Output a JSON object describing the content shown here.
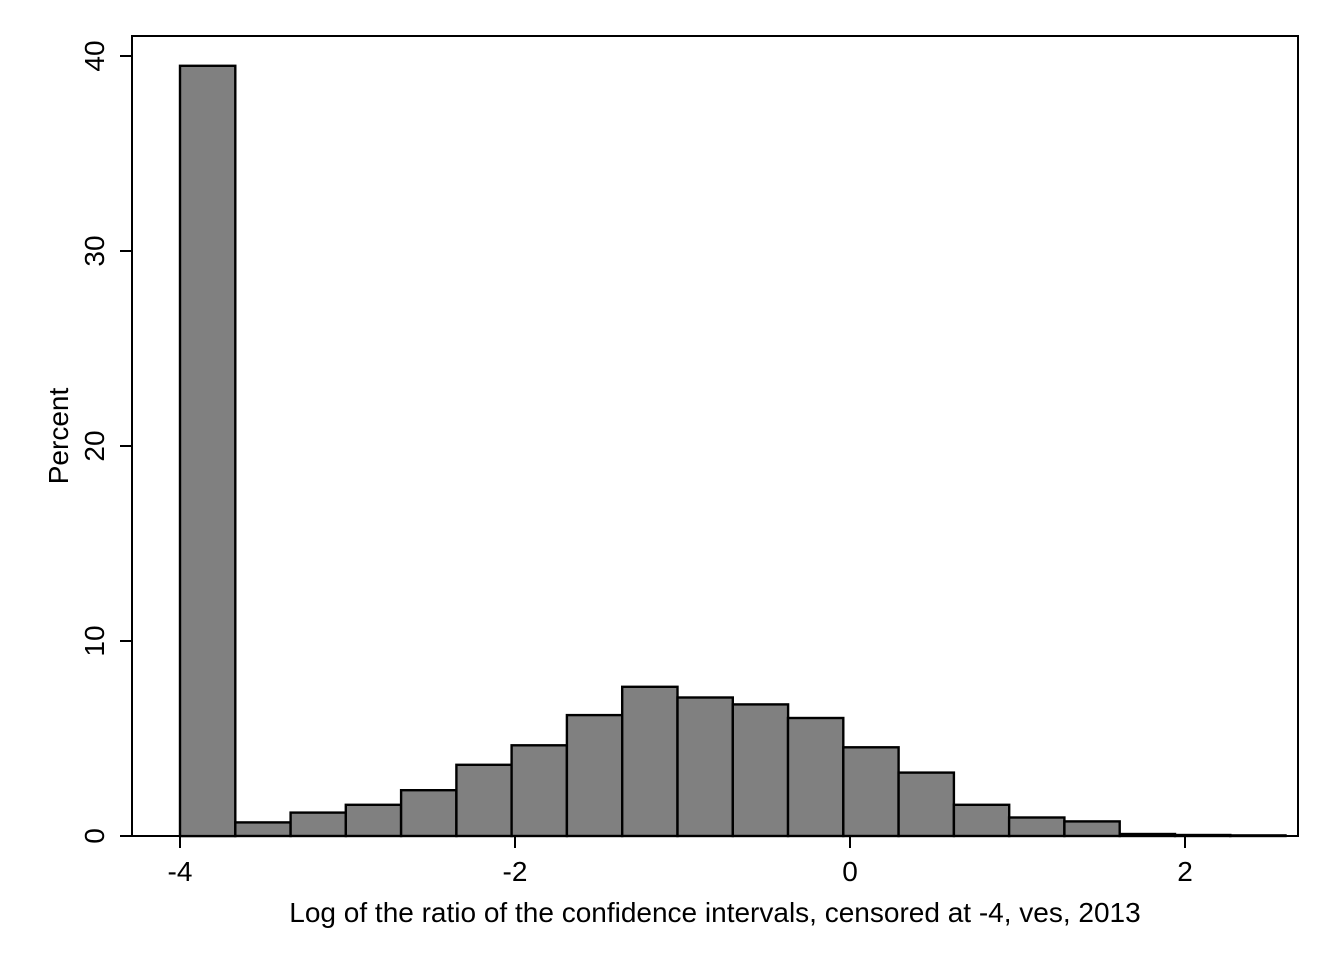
{
  "chart_data": {
    "type": "bar",
    "title": "",
    "xlabel": "Log of the ratio of the confidence intervals, censored at -4, ves, 2013",
    "ylabel": "Percent",
    "x_ticks": [
      -4,
      -2,
      0,
      2
    ],
    "x_tick_labels": [
      "-4",
      "-2",
      "0",
      "2"
    ],
    "y_ticks": [
      0,
      10,
      20,
      30,
      40
    ],
    "y_tick_labels": [
      "0",
      "10",
      "20",
      "30",
      "40"
    ],
    "xlim": [
      -4.3,
      2.7
    ],
    "ylim": [
      0,
      41
    ],
    "bin_width": 0.33,
    "bins": [
      {
        "start": -4.0,
        "value": 39.5
      },
      {
        "start": -3.67,
        "value": 0.7
      },
      {
        "start": -3.34,
        "value": 1.2
      },
      {
        "start": -3.01,
        "value": 1.6
      },
      {
        "start": -2.68,
        "value": 2.35
      },
      {
        "start": -2.35,
        "value": 3.65
      },
      {
        "start": -2.02,
        "value": 4.65
      },
      {
        "start": -1.69,
        "value": 6.2
      },
      {
        "start": -1.36,
        "value": 7.65
      },
      {
        "start": -1.03,
        "value": 7.1
      },
      {
        "start": -0.7,
        "value": 6.75
      },
      {
        "start": -0.37,
        "value": 6.05
      },
      {
        "start": -0.04,
        "value": 4.55
      },
      {
        "start": 0.29,
        "value": 3.25
      },
      {
        "start": 0.62,
        "value": 1.6
      },
      {
        "start": 0.95,
        "value": 0.95
      },
      {
        "start": 1.28,
        "value": 0.75
      },
      {
        "start": 1.61,
        "value": 0.1
      },
      {
        "start": 1.94,
        "value": 0.05
      },
      {
        "start": 2.27,
        "value": 0.03
      }
    ],
    "bar_color": "#808080",
    "edge_color": "#000000",
    "grid": false,
    "legend": "none"
  }
}
